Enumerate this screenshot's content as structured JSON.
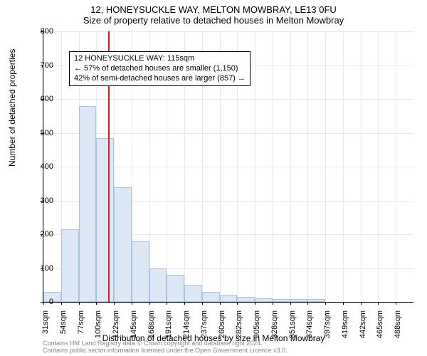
{
  "title_main": "12, HONEYSUCKLE WAY, MELTON MOWBRAY, LE13 0FU",
  "title_sub": "Size of property relative to detached houses in Melton Mowbray",
  "ylabel": "Number of detached properties",
  "xlabel": "Distribution of detached houses by size in Melton Mowbray",
  "footer_line1": "Contains HM Land Registry data © Crown copyright and database right 2024.",
  "footer_line2": "Contains public sector information licensed under the Open Government Licence v3.0.",
  "chart": {
    "type": "histogram",
    "y_max": 800,
    "y_tick_step": 100,
    "bar_fill": "#dce8f6",
    "bar_border": "#a8c4e0",
    "grid_color": "#e8e8e8",
    "refline_color": "#d02020",
    "refline_x_label": "115sqm",
    "background": "#ffffff",
    "x_labels": [
      "31sqm",
      "54sqm",
      "77sqm",
      "100sqm",
      "122sqm",
      "145sqm",
      "168sqm",
      "191sqm",
      "214sqm",
      "237sqm",
      "260sqm",
      "282sqm",
      "305sqm",
      "328sqm",
      "351sqm",
      "374sqm",
      "397sqm",
      "419sqm",
      "442sqm",
      "465sqm",
      "488sqm"
    ],
    "values": [
      30,
      215,
      580,
      485,
      340,
      180,
      100,
      80,
      50,
      30,
      22,
      15,
      10,
      8,
      8,
      8,
      0,
      0,
      0,
      0,
      0
    ]
  },
  "annotation": {
    "line1": "12 HONEYSUCKLE WAY: 115sqm",
    "line2": "← 57% of detached houses are smaller (1,150)",
    "line3": "42% of semi-detached houses are larger (857) →"
  }
}
